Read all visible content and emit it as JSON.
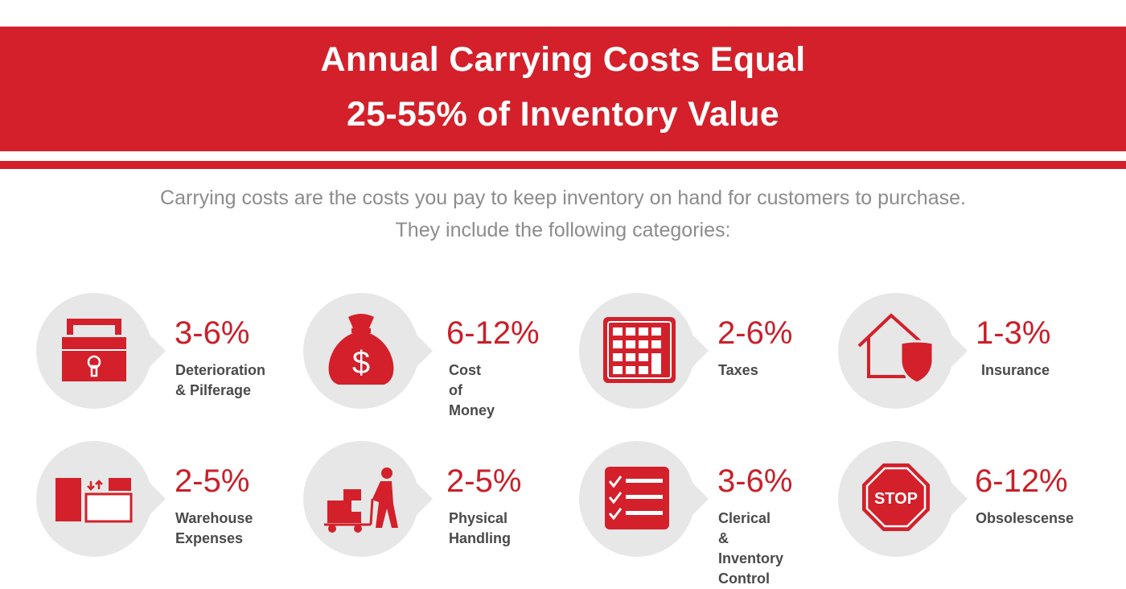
{
  "header": {
    "title_line1": "Annual Carrying Costs Equal",
    "title_line2": "25-55% of Inventory Value"
  },
  "intro": {
    "line1": "Carrying costs are the costs you pay to keep inventory on hand for customers to purchase.",
    "line2": "They include the following categories:"
  },
  "categories": [
    {
      "percent": "3-6%",
      "label": "Deterioration\n& Pilferage",
      "icon": "padlock-icon"
    },
    {
      "percent": "6-12%",
      "label": "Cost of\nMoney",
      "icon": "money-bag-icon"
    },
    {
      "percent": "2-6%",
      "label": "Taxes",
      "icon": "calculator-icon"
    },
    {
      "percent": "1-3%",
      "label": "Insurance",
      "icon": "house-shield-icon"
    },
    {
      "percent": "2-5%",
      "label": "Warehouse\nExpenses",
      "icon": "warehouse-shelves-icon"
    },
    {
      "percent": "2-5%",
      "label": "Physical\nHandling",
      "icon": "hand-truck-worker-icon"
    },
    {
      "percent": "3-6%",
      "label": "Clerical &\nInventory\nControl",
      "icon": "checklist-icon"
    },
    {
      "percent": "6-12%",
      "label": "Obsolescense",
      "icon": "stop-sign-icon"
    }
  ],
  "colors": {
    "accent": "#d3202a",
    "circle": "#e7e7e7",
    "intro_text": "#8c8c8c",
    "label_text": "#4a4a4a"
  },
  "icon_text": {
    "dollar": "$",
    "stop": "STOP"
  }
}
